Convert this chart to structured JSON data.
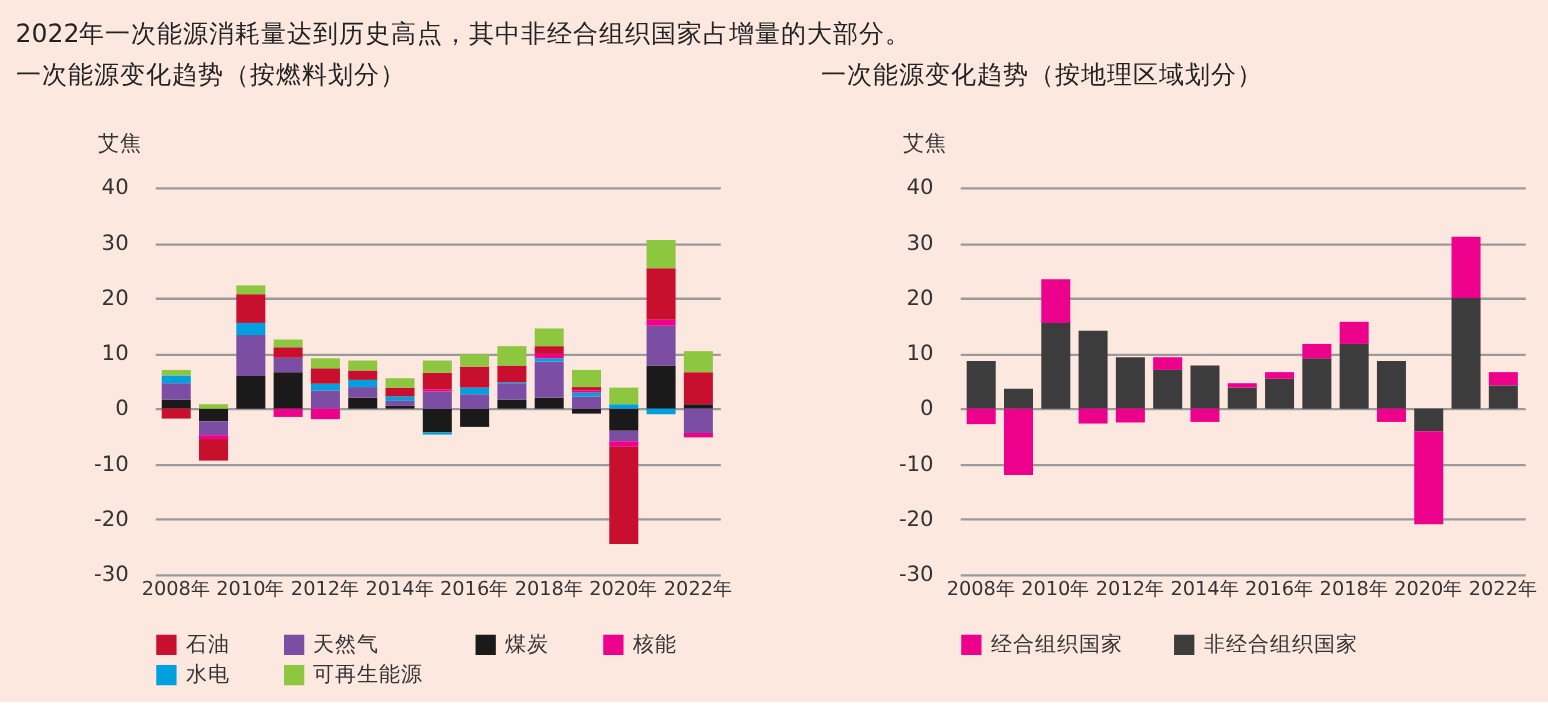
{
  "chart_data": [
    {
      "type": "bar",
      "stacked": true,
      "title": "2022年一次能源消耗量达到历史高点，其中非经合组织国家占增量的大部分。",
      "subtitle": "一次能源变化趋势（按燃料划分）",
      "ylabel": "艾焦",
      "categories": [
        "2008年",
        null,
        "2010年",
        null,
        "2012年",
        null,
        "2014年",
        null,
        "2016年",
        null,
        "2018年",
        null,
        "2020年",
        null,
        "2022年"
      ],
      "ylim": [
        -30,
        40
      ],
      "yticks": [
        -30,
        -20,
        -10,
        0,
        10,
        20,
        30,
        40
      ],
      "grid": "y",
      "legend": "bottom",
      "series": [
        {
          "name": "煤炭",
          "color": "#1a1a1a",
          "values": [
            1.6,
            -2.3,
            5.9,
            6.6,
            0,
            2.0,
            0.5,
            -4.3,
            -3.3,
            1.6,
            2.0,
            -0.9,
            -4.0,
            7.8,
            0.8
          ]
        },
        {
          "name": "天然气",
          "color": "#7b4ea3",
          "values": [
            3.0,
            -2.5,
            7.4,
            2.6,
            3.3,
            1.9,
            0.9,
            3.1,
            2.6,
            3.0,
            6.5,
            2.2,
            -1.9,
            7.2,
            -4.4
          ]
        },
        {
          "name": "水电",
          "color": "#00a0e0",
          "values": [
            1.4,
            0,
            2.2,
            0,
            1.2,
            1.3,
            0.8,
            -0.4,
            1.2,
            0.2,
            0.6,
            0.7,
            0.8,
            -1.0,
            0
          ]
        },
        {
          "name": "核能",
          "color": "#ec008c",
          "values": [
            0,
            -0.7,
            0,
            -1.5,
            -1.9,
            0,
            0,
            0.4,
            0,
            0,
            0.8,
            0.4,
            -1.0,
            1.1,
            -0.8
          ]
        },
        {
          "name": "石油",
          "color": "#c8102e",
          "values": [
            -1.8,
            -3.9,
            5.2,
            1.9,
            2.8,
            1.7,
            1.6,
            3.0,
            3.8,
            3.0,
            1.4,
            0.6,
            -17.6,
            9.3,
            5.8
          ]
        },
        {
          "name": "可再生能源",
          "color": "#8dc63f",
          "values": [
            1.0,
            0.8,
            1.6,
            1.4,
            1.8,
            1.8,
            1.7,
            2.2,
            2.2,
            3.5,
            3.2,
            3.1,
            3.0,
            5.1,
            3.8
          ]
        }
      ]
    },
    {
      "type": "bar",
      "stacked": true,
      "subtitle": "一次能源变化趋势（按地理区域划分）",
      "ylabel": "艾焦",
      "categories": [
        "2008年",
        null,
        "2010年",
        null,
        "2012年",
        null,
        "2014年",
        null,
        "2016年",
        null,
        "2018年",
        null,
        "2020年",
        null,
        "2022年"
      ],
      "ylim": [
        -30,
        40
      ],
      "yticks": [
        -30,
        -20,
        -10,
        0,
        10,
        20,
        30,
        40
      ],
      "grid": "y",
      "legend": "bottom",
      "series": [
        {
          "name": "非经合组织国家",
          "color": "#3c3c3c",
          "values": [
            8.6,
            3.6,
            15.5,
            14.1,
            9.3,
            7.0,
            7.8,
            3.8,
            5.4,
            9.1,
            11.7,
            8.6,
            -4.1,
            20.0,
            4.2
          ]
        },
        {
          "name": "经合组织国家",
          "color": "#ec008c",
          "values": [
            -2.8,
            -12.0,
            7.9,
            -2.7,
            -2.5,
            2.3,
            -2.4,
            0.8,
            1.2,
            2.6,
            4.0,
            -2.4,
            -16.8,
            11.1,
            2.4
          ]
        }
      ]
    }
  ]
}
